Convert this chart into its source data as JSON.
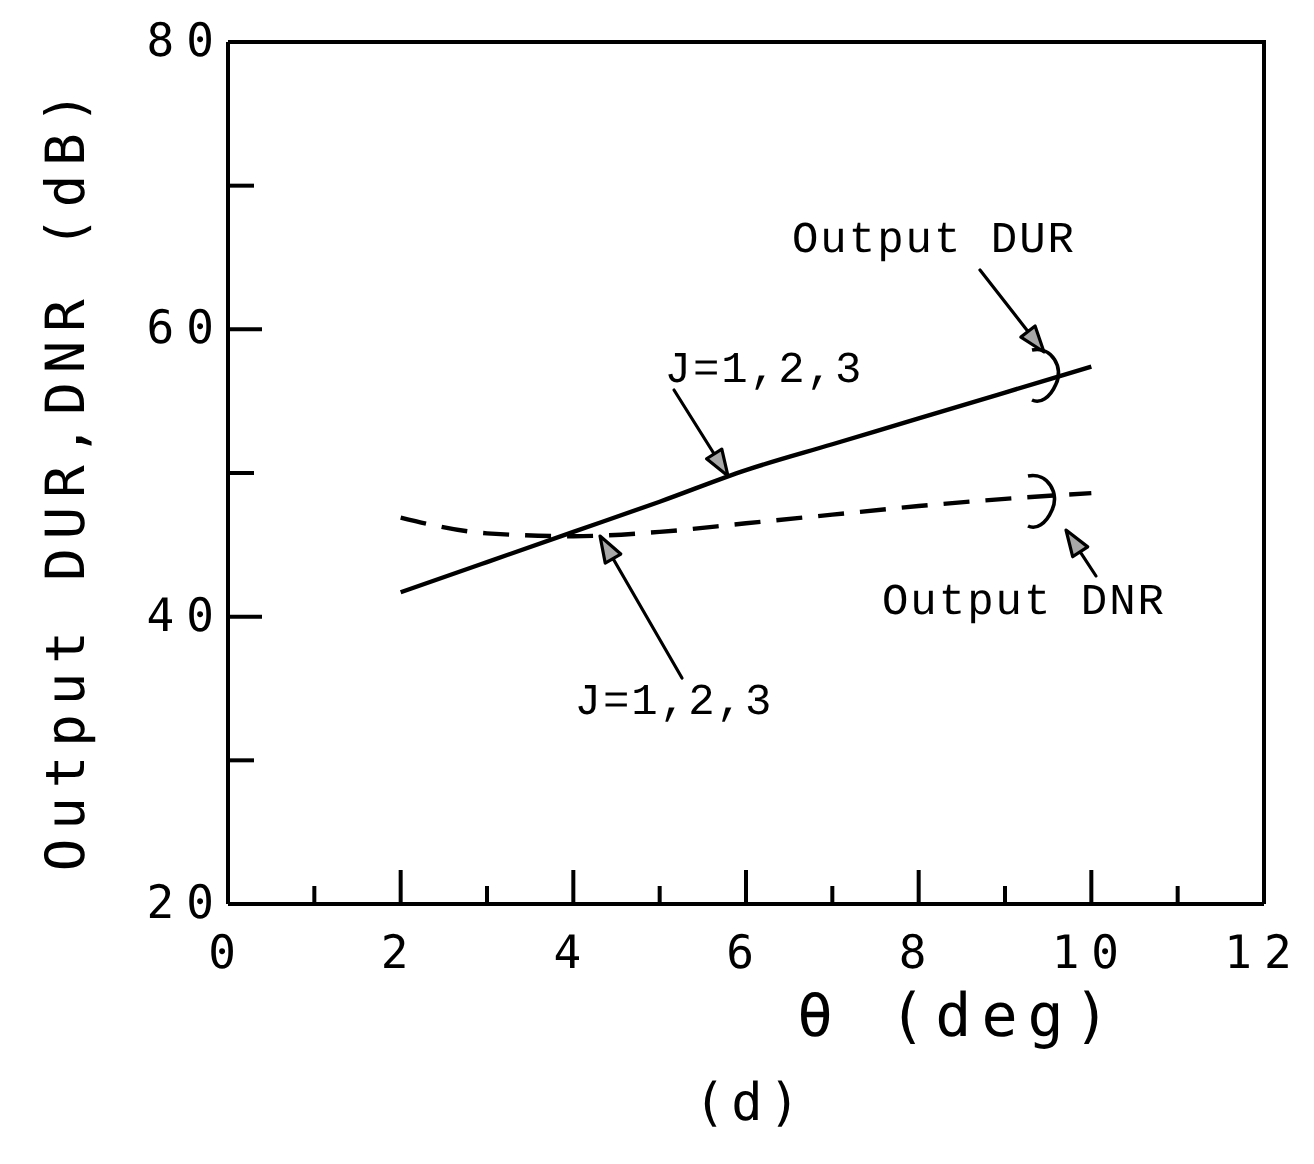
{
  "chart_data": {
    "type": "line",
    "xlabel": "θ (deg)",
    "ylabel": "Output DUR,DNR (dB)",
    "x": [
      2,
      3,
      4,
      5,
      6,
      7,
      8,
      9,
      10
    ],
    "series": [
      {
        "color": "#000000",
        "line_style": "solid",
        "values": [
          41.7,
          43.8,
          45.9,
          48.0,
          50.2,
          52.0,
          53.8,
          55.6,
          57.4
        ]
      },
      {
        "color": "#000000",
        "line_style": "dashed",
        "values": [
          46.9,
          45.8,
          45.6,
          45.9,
          46.5,
          47.1,
          47.7,
          48.2,
          48.6
        ]
      }
    ],
    "xlim": [
      0,
      12
    ],
    "xticks": [
      0,
      {
        "value": 1,
        "label": null
      },
      2,
      {
        "value": 3,
        "label": null
      },
      4,
      {
        "value": 5,
        "label": null
      },
      6,
      {
        "value": 7,
        "label": null
      },
      8,
      {
        "value": 9,
        "label": null
      },
      10,
      {
        "value": 11,
        "label": null
      },
      12
    ],
    "ylim": [
      20,
      80
    ],
    "yticks": [
      20,
      {
        "value": 30,
        "label": null
      },
      40,
      {
        "value": 50,
        "label": null
      },
      60,
      {
        "value": 70,
        "label": null
      },
      80
    ],
    "marker": "none",
    "annotations": [
      "Output DUR",
      "J=1,2,3",
      "J=1,2,3",
      "Output DNR",
      "(d)"
    ]
  }
}
